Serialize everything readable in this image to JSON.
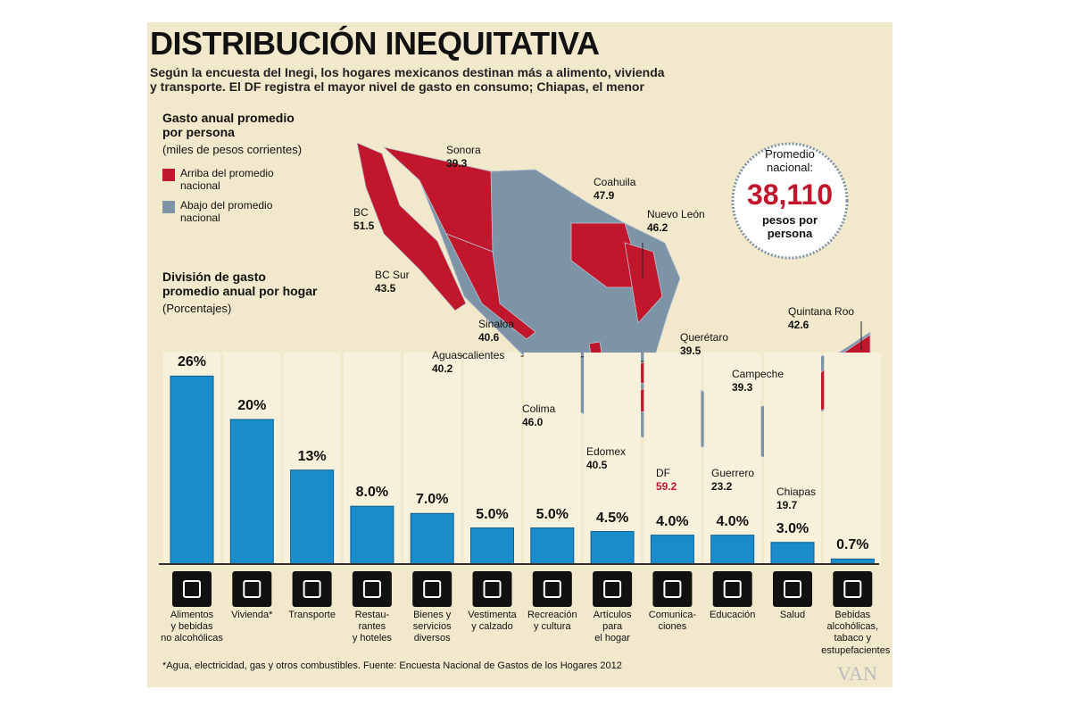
{
  "header": {
    "title": "DISTRIBUCIÓN INEQUITATIVA",
    "subtitle": "Según la encuesta del Inegi, los hogares mexicanos destinan más a alimento, vivienda\ny transporte. El DF registra el mayor nivel de gasto en consumo; Chiapas, el menor"
  },
  "legend": {
    "title": "Gasto anual promedio\npor persona",
    "subtitle": "(miles de pesos corrientes)",
    "items": [
      {
        "label": "Arriba del promedio\nnacional",
        "color": "#c0172d"
      },
      {
        "label": "Abajo del promedio\nnacional",
        "color": "#7d93a6"
      }
    ]
  },
  "average": {
    "label": "Promedio\nnacional:",
    "value": "38,110",
    "unit": "pesos por\npersona"
  },
  "map": {
    "states": [
      {
        "name": "Sonora",
        "value": 39.3
      },
      {
        "name": "BC",
        "value": 51.5
      },
      {
        "name": "BC Sur",
        "value": 43.5
      },
      {
        "name": "Coahuila",
        "value": 47.9
      },
      {
        "name": "Nuevo León",
        "value": 46.2
      },
      {
        "name": "Sinaloa",
        "value": 40.6
      },
      {
        "name": "Aguascalientes",
        "value": 40.2
      },
      {
        "name": "Querétaro",
        "value": 39.5
      },
      {
        "name": "Quintana Roo",
        "value": 42.6
      },
      {
        "name": "Campeche",
        "value": 39.3
      },
      {
        "name": "Colima",
        "value": 46.0,
        "label": "46.0"
      },
      {
        "name": "Edomex",
        "value": 40.5
      },
      {
        "name": "DF",
        "value": 59.2
      },
      {
        "name": "Guerrero",
        "value": 23.2
      },
      {
        "name": "Chiapas",
        "value": 19.7
      }
    ]
  },
  "chart_data": {
    "type": "bar",
    "title": "División de gasto\npromedio anual por hogar",
    "subtitle": "(Porcentajes)",
    "categories": [
      "Alimentos\ny bebidas\nno alcohólicas",
      "Vivienda*",
      "Transporte",
      "Restau-\nrantes\ny hoteles",
      "Bienes y\nservicios\ndiversos",
      "Vestimenta\ny calzado",
      "Recreación\ny cultura",
      "Artículos\npara\nel hogar",
      "Comunica-\nciones",
      "Educación",
      "Salud",
      "Bebidas\nalcohólicas,\ntabaco y\nestupefacientes"
    ],
    "values": [
      26,
      20,
      13,
      8,
      7,
      5,
      5,
      4.5,
      4,
      4,
      3,
      0.7
    ],
    "value_labels": [
      "26%",
      "20%",
      "13%",
      "8.0%",
      "7.0%",
      "5.0%",
      "5.0%",
      "4.5%",
      "4.0%",
      "4.0%",
      "3.0%",
      "0.7%"
    ],
    "color": "#1a8ccc"
  },
  "footnote": "*Agua, electricidad, gas y otros combustibles. Fuente: Encuesta Nacional de Gastos de los Hogares 2012",
  "watermark": "VAN"
}
